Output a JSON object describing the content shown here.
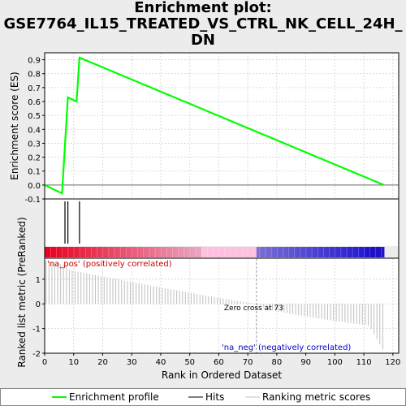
{
  "title": {
    "line1": "Enrichment plot:",
    "line2": "GSE7764_IL15_TREATED_VS_CTRL_NK_CELL_24H_",
    "line3": "DN"
  },
  "colors": {
    "es_line": "#00ff00",
    "hits": "#000000",
    "metric": "#c0c0c0",
    "grid": "#d3d3d3",
    "zero_cross": "#999999",
    "pos_label": "#cc0000",
    "neg_label": "#0000cc",
    "heat_red": "#e8001e",
    "heat_pink": "#ffc0e0",
    "heat_blue": "#2010c8"
  },
  "chart_data": [
    {
      "type": "line",
      "name": "enrichment-score",
      "ylabel": "Enrichment score (ES)",
      "xlim": [
        0,
        122
      ],
      "ylim": [
        -0.1,
        0.95
      ],
      "yticks": [
        -0.1,
        0.0,
        0.1,
        0.2,
        0.3,
        0.4,
        0.5,
        0.6,
        0.7,
        0.8,
        0.9
      ],
      "ytick_labels": [
        "-0.1",
        "0.0",
        "0.1",
        "0.2",
        "0.3",
        "0.4",
        "0.5",
        "0.6",
        "0.7",
        "0.8",
        "0.9"
      ],
      "grid": true,
      "x": [
        0,
        6,
        8,
        11,
        12,
        117
      ],
      "y": [
        0.0,
        -0.06,
        0.63,
        0.6,
        0.915,
        0.0
      ],
      "hits": [
        7,
        8,
        12
      ]
    },
    {
      "type": "bar",
      "name": "ranked-list-metric",
      "ylabel": "Ranked list metric (PreRanked)",
      "xlabel": "Rank in Ordered Dataset",
      "xlim": [
        0,
        122
      ],
      "ylim": [
        -2,
        1.85
      ],
      "yticks": [
        -2,
        -1,
        0,
        1
      ],
      "ytick_labels": [
        "-2",
        "-1",
        "0",
        "1"
      ],
      "xticks": [
        0,
        10,
        20,
        30,
        40,
        50,
        60,
        70,
        80,
        90,
        100,
        110,
        120
      ],
      "xtick_labels": [
        "0",
        "10",
        "20",
        "30",
        "40",
        "50",
        "60",
        "70",
        "80",
        "90",
        "100",
        "110",
        "120"
      ],
      "zero_cross": 73,
      "zero_cross_label": "Zero cross at 73",
      "pos_label": "'na_pos' (positively correlated)",
      "neg_label": "'na_neg' (negatively correlated)",
      "n": 117,
      "metric_start": 1.75,
      "metric_end": -1.85
    }
  ],
  "legend": {
    "items": [
      {
        "label": "Enrichment profile"
      },
      {
        "label": "Hits"
      },
      {
        "label": "Ranking metric scores"
      }
    ]
  }
}
